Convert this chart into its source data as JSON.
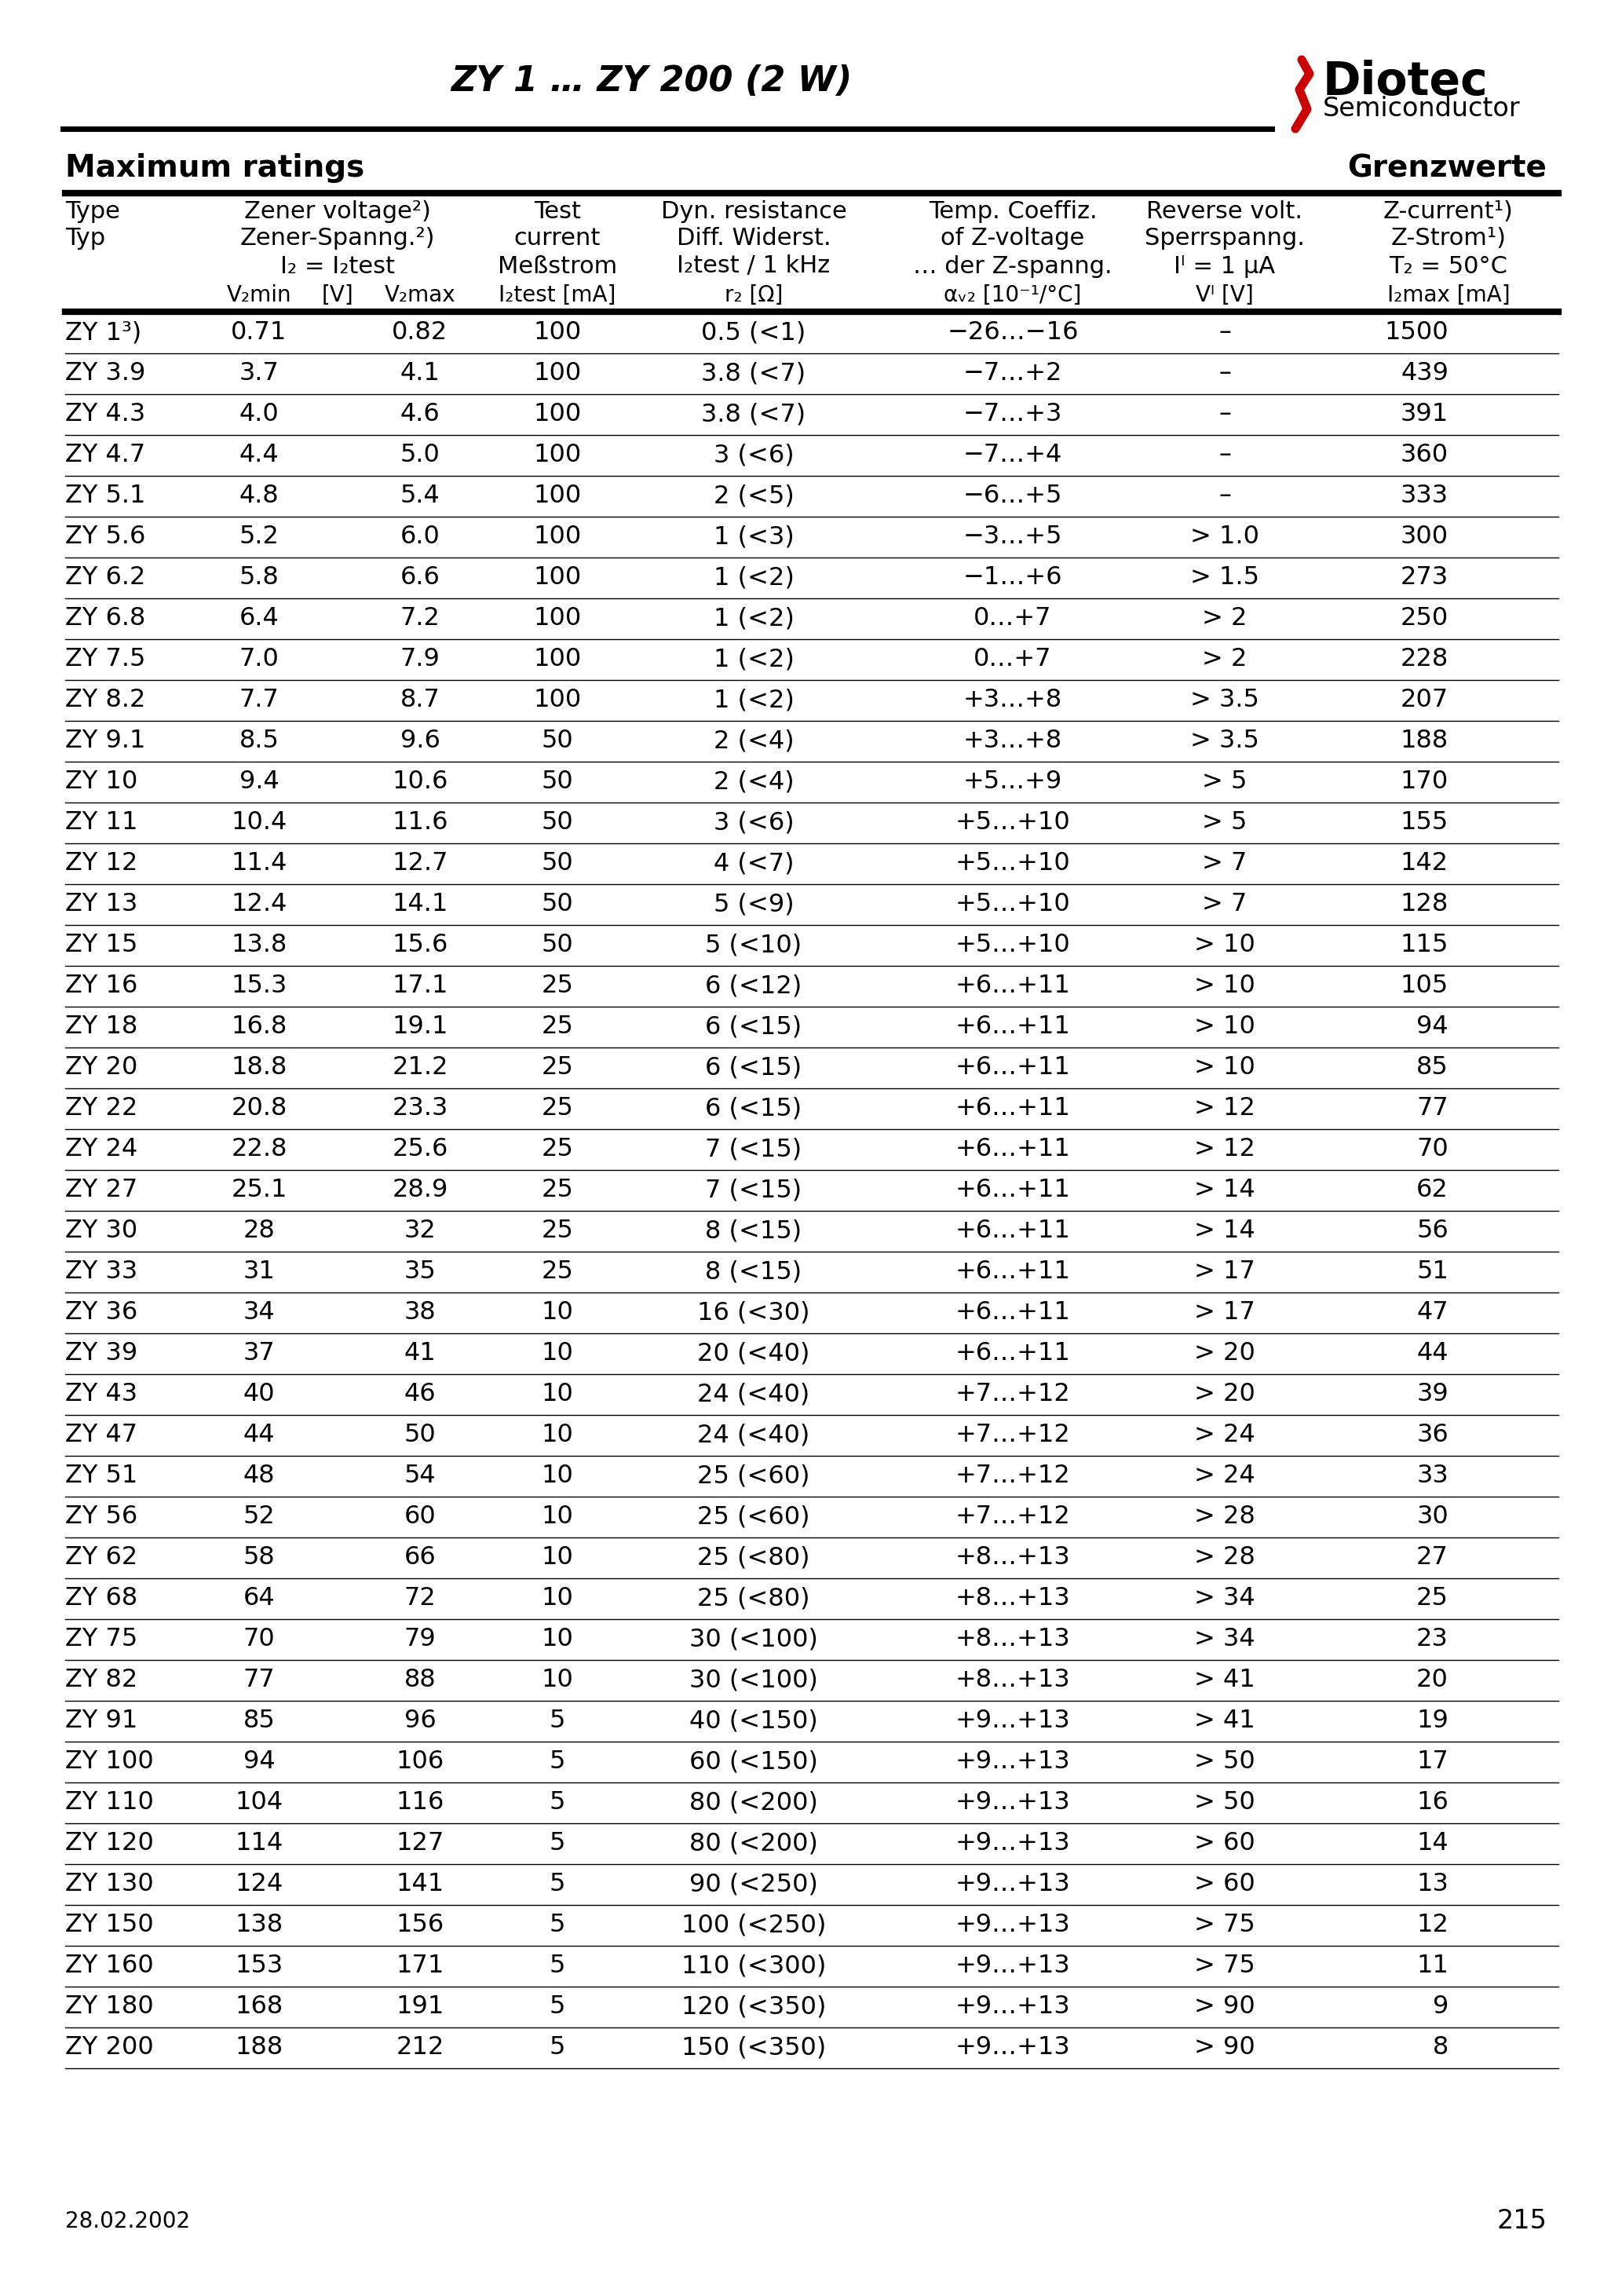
{
  "title": "ZY 1 … ZY 200 (2 W)",
  "max_ratings_left": "Maximum ratings",
  "max_ratings_right": "Grenzwerte",
  "date_text": "28.02.2002",
  "page_num": "215",
  "col_headers": [
    [
      "Type",
      "Typ"
    ],
    [
      "Zener voltage²)",
      "Zener-Spanng.²)",
      "I₂ = I₂test",
      "V₂min [V] V₂max"
    ],
    [
      "Test",
      "current",
      "Meßstrom",
      "I₂test [mA]"
    ],
    [
      "Dyn. resistance",
      "Diff. Widerst.",
      "I₂test / 1 kHz",
      "r₂ [Ω]"
    ],
    [
      "Temp. Coeffiz.",
      "of Z-voltage",
      "… der Z-spanng.",
      "αᵥ₂ [10⁻¹/°C]"
    ],
    [
      "Reverse volt.",
      "Sperrspanng.",
      "Iᴵ = 1 μA",
      "Vᴵ [V]"
    ],
    [
      "Z-current¹)",
      "Z-Strom¹)",
      "T₂ = 50°C",
      "I₂max [mA]"
    ]
  ],
  "rows": [
    [
      "ZY 1³)",
      "0.71",
      "0.82",
      "100",
      "0.5 (<1)",
      "−26…−16",
      "–",
      "1500"
    ],
    [
      "ZY 3.9",
      "3.7",
      "4.1",
      "100",
      "3.8 (<7)",
      "−7…+2",
      "–",
      "439"
    ],
    [
      "ZY 4.3",
      "4.0",
      "4.6",
      "100",
      "3.8 (<7)",
      "−7…+3",
      "–",
      "391"
    ],
    [
      "ZY 4.7",
      "4.4",
      "5.0",
      "100",
      "3 (<6)",
      "−7…+4",
      "–",
      "360"
    ],
    [
      "ZY 5.1",
      "4.8",
      "5.4",
      "100",
      "2 (<5)",
      "−6…+5",
      "–",
      "333"
    ],
    [
      "ZY 5.6",
      "5.2",
      "6.0",
      "100",
      "1 (<3)",
      "−3…+5",
      "> 1.0",
      "300"
    ],
    [
      "ZY 6.2",
      "5.8",
      "6.6",
      "100",
      "1 (<2)",
      "−1…+6",
      "> 1.5",
      "273"
    ],
    [
      "ZY 6.8",
      "6.4",
      "7.2",
      "100",
      "1 (<2)",
      "0…+7",
      "> 2",
      "250"
    ],
    [
      "ZY 7.5",
      "7.0",
      "7.9",
      "100",
      "1 (<2)",
      "0…+7",
      "> 2",
      "228"
    ],
    [
      "ZY 8.2",
      "7.7",
      "8.7",
      "100",
      "1 (<2)",
      "+3…+8",
      "> 3.5",
      "207"
    ],
    [
      "ZY 9.1",
      "8.5",
      "9.6",
      "50",
      "2 (<4)",
      "+3…+8",
      "> 3.5",
      "188"
    ],
    [
      "ZY 10",
      "9.4",
      "10.6",
      "50",
      "2 (<4)",
      "+5…+9",
      "> 5",
      "170"
    ],
    [
      "ZY 11",
      "10.4",
      "11.6",
      "50",
      "3 (<6)",
      "+5…+10",
      "> 5",
      "155"
    ],
    [
      "ZY 12",
      "11.4",
      "12.7",
      "50",
      "4 (<7)",
      "+5…+10",
      "> 7",
      "142"
    ],
    [
      "ZY 13",
      "12.4",
      "14.1",
      "50",
      "5 (<9)",
      "+5…+10",
      "> 7",
      "128"
    ],
    [
      "ZY 15",
      "13.8",
      "15.6",
      "50",
      "5 (<10)",
      "+5…+10",
      "> 10",
      "115"
    ],
    [
      "ZY 16",
      "15.3",
      "17.1",
      "25",
      "6 (<12)",
      "+6…+11",
      "> 10",
      "105"
    ],
    [
      "ZY 18",
      "16.8",
      "19.1",
      "25",
      "6 (<15)",
      "+6…+11",
      "> 10",
      "94"
    ],
    [
      "ZY 20",
      "18.8",
      "21.2",
      "25",
      "6 (<15)",
      "+6…+11",
      "> 10",
      "85"
    ],
    [
      "ZY 22",
      "20.8",
      "23.3",
      "25",
      "6 (<15)",
      "+6…+11",
      "> 12",
      "77"
    ],
    [
      "ZY 24",
      "22.8",
      "25.6",
      "25",
      "7 (<15)",
      "+6…+11",
      "> 12",
      "70"
    ],
    [
      "ZY 27",
      "25.1",
      "28.9",
      "25",
      "7 (<15)",
      "+6…+11",
      "> 14",
      "62"
    ],
    [
      "ZY 30",
      "28",
      "32",
      "25",
      "8 (<15)",
      "+6…+11",
      "> 14",
      "56"
    ],
    [
      "ZY 33",
      "31",
      "35",
      "25",
      "8 (<15)",
      "+6…+11",
      "> 17",
      "51"
    ],
    [
      "ZY 36",
      "34",
      "38",
      "10",
      "16 (<30)",
      "+6…+11",
      "> 17",
      "47"
    ],
    [
      "ZY 39",
      "37",
      "41",
      "10",
      "20 (<40)",
      "+6…+11",
      "> 20",
      "44"
    ],
    [
      "ZY 43",
      "40",
      "46",
      "10",
      "24 (<40)",
      "+7…+12",
      "> 20",
      "39"
    ],
    [
      "ZY 47",
      "44",
      "50",
      "10",
      "24 (<40)",
      "+7…+12",
      "> 24",
      "36"
    ],
    [
      "ZY 51",
      "48",
      "54",
      "10",
      "25 (<60)",
      "+7…+12",
      "> 24",
      "33"
    ],
    [
      "ZY 56",
      "52",
      "60",
      "10",
      "25 (<60)",
      "+7…+12",
      "> 28",
      "30"
    ],
    [
      "ZY 62",
      "58",
      "66",
      "10",
      "25 (<80)",
      "+8…+13",
      "> 28",
      "27"
    ],
    [
      "ZY 68",
      "64",
      "72",
      "10",
      "25 (<80)",
      "+8…+13",
      "> 34",
      "25"
    ],
    [
      "ZY 75",
      "70",
      "79",
      "10",
      "30 (<100)",
      "+8…+13",
      "> 34",
      "23"
    ],
    [
      "ZY 82",
      "77",
      "88",
      "10",
      "30 (<100)",
      "+8…+13",
      "> 41",
      "20"
    ],
    [
      "ZY 91",
      "85",
      "96",
      "5",
      "40 (<150)",
      "+9…+13",
      "> 41",
      "19"
    ],
    [
      "ZY 100",
      "94",
      "106",
      "5",
      "60 (<150)",
      "+9…+13",
      "> 50",
      "17"
    ],
    [
      "ZY 110",
      "104",
      "116",
      "5",
      "80 (<200)",
      "+9…+13",
      "> 50",
      "16"
    ],
    [
      "ZY 120",
      "114",
      "127",
      "5",
      "80 (<200)",
      "+9…+13",
      "> 60",
      "14"
    ],
    [
      "ZY 130",
      "124",
      "141",
      "5",
      "90 (<250)",
      "+9…+13",
      "> 60",
      "13"
    ],
    [
      "ZY 150",
      "138",
      "156",
      "5",
      "100 (<250)",
      "+9…+13",
      "> 75",
      "12"
    ],
    [
      "ZY 160",
      "153",
      "171",
      "5",
      "110 (<300)",
      "+9…+13",
      "> 75",
      "11"
    ],
    [
      "ZY 180",
      "168",
      "191",
      "5",
      "120 (<350)",
      "+9…+13",
      "> 90",
      "9"
    ],
    [
      "ZY 200",
      "188",
      "212",
      "5",
      "150 (<350)",
      "+9…+13",
      "> 90",
      "8"
    ]
  ],
  "background_color": "#ffffff",
  "text_color": "#000000",
  "header_line_color": "#000000",
  "logo_red": "#cc0000",
  "logo_text": "Diotec",
  "logo_sub": "Semiconductor"
}
